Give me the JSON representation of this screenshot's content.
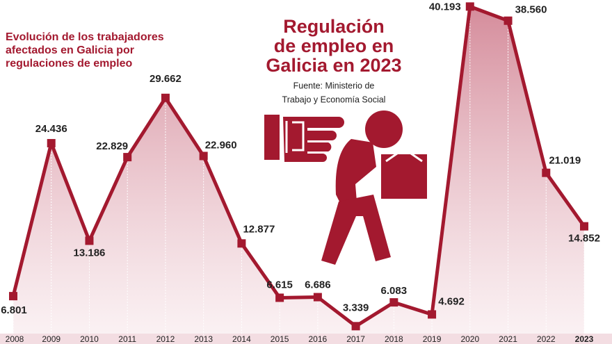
{
  "chart_data": {
    "type": "line",
    "title": [
      "Regulación",
      "de empleo en",
      "Galicia en 2023"
    ],
    "subtitle": [
      "Evolución de los trabajadores",
      "afectados en Galicia por",
      "regulaciones de empleo"
    ],
    "source": [
      "Fuente: Ministerio de",
      "Trabajo y Economía Social"
    ],
    "categories": [
      "2008",
      "2009",
      "2010",
      "2011",
      "2012",
      "2013",
      "2014",
      "2015",
      "2016",
      "2017",
      "2018",
      "2019",
      "2020",
      "2021",
      "2022",
      "2023"
    ],
    "values": [
      6801,
      24436,
      13186,
      22829,
      29662,
      22960,
      12877,
      6615,
      6686,
      3339,
      6083,
      4692,
      40193,
      38560,
      21019,
      14852
    ],
    "value_labels": [
      "6.801",
      "24.436",
      "13.186",
      "22.829",
      "29.662",
      "22.960",
      "12.877",
      "6.615",
      "6.686",
      "3.339",
      "6.083",
      "4.692",
      "40.193",
      "38.560",
      "21.019",
      "14.852"
    ],
    "color": "#a3192f"
  }
}
